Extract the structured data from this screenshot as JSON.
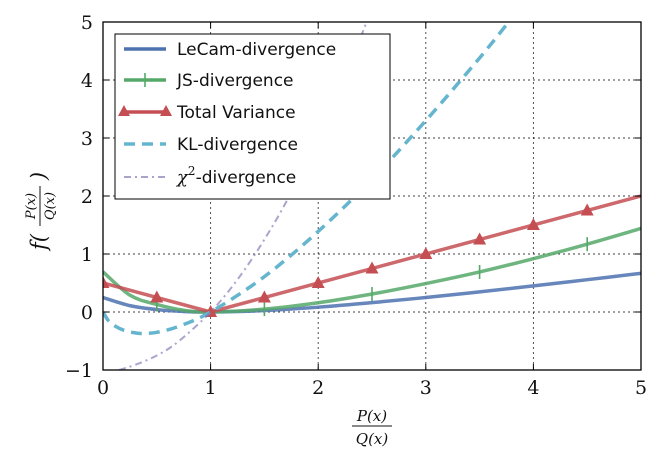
{
  "chart_data": {
    "type": "line",
    "title": "",
    "xlabel_num": "P(x)",
    "xlabel_den": "Q(x)",
    "ylabel_prefix": "f(",
    "ylabel_num": "P(x)",
    "ylabel_den": "Q(x)",
    "ylabel_suffix": ")",
    "xlim": [
      0,
      5
    ],
    "ylim": [
      -1,
      5
    ],
    "xticks": [
      0,
      1,
      2,
      3,
      4,
      5
    ],
    "yticks": [
      -1,
      0,
      1,
      2,
      3,
      4,
      5
    ],
    "xtick_labels": [
      "0",
      "1",
      "2",
      "3",
      "4",
      "5"
    ],
    "ytick_labels": [
      "−1",
      "0",
      "1",
      "2",
      "3",
      "4",
      "5"
    ],
    "grid": true,
    "legend_position": "top-left",
    "series": [
      {
        "name": "LeCam-divergence",
        "color": "#4c72b0",
        "style": "solid",
        "marker": "none",
        "x": [
          0,
          0.25,
          0.5,
          0.75,
          1,
          1.5,
          2,
          2.5,
          3,
          3.5,
          4,
          4.5,
          5
        ],
        "y": [
          0.25,
          0.11,
          0.042,
          0.009,
          0,
          0.025,
          0.083,
          0.161,
          0.25,
          0.347,
          0.45,
          0.557,
          0.667
        ]
      },
      {
        "name": "JS-divergence",
        "color": "#55a868",
        "style": "solid",
        "marker": "plus",
        "x": [
          0,
          0.25,
          0.5,
          0.75,
          1,
          1.5,
          2,
          2.5,
          3,
          3.5,
          4,
          4.5,
          5
        ],
        "y": [
          0.693,
          0.29,
          0.13,
          0.03,
          0,
          0.05,
          0.16,
          0.31,
          0.49,
          0.69,
          0.92,
          1.17,
          1.44
        ],
        "marker_x": [
          0.5,
          1.5,
          2.5,
          3.5,
          4.5
        ],
        "marker_y": [
          0.13,
          0.05,
          0.31,
          0.69,
          1.17
        ]
      },
      {
        "name": "Total Variance",
        "color": "#c44e52",
        "style": "solid",
        "marker": "triangle",
        "x": [
          0,
          1,
          5
        ],
        "y": [
          0.5,
          0,
          2
        ],
        "marker_x": [
          0,
          0.5,
          1,
          1.5,
          2,
          2.5,
          3,
          3.5,
          4,
          4.5
        ],
        "marker_y": [
          0.5,
          0.25,
          0,
          0.25,
          0.5,
          0.75,
          1,
          1.25,
          1.5,
          1.75
        ]
      },
      {
        "name": "KL-divergence",
        "color": "#64b5cd",
        "style": "dashed",
        "marker": "none",
        "x": [
          0,
          0.05,
          0.1,
          0.2,
          0.3,
          0.37,
          0.5,
          0.7,
          1,
          1.5,
          2,
          2.5,
          3,
          3.5,
          3.8
        ],
        "y": [
          0,
          -0.15,
          -0.23,
          -0.32,
          -0.36,
          -0.37,
          -0.35,
          -0.25,
          0,
          0.61,
          1.39,
          2.29,
          3.3,
          4.38,
          5.07
        ]
      },
      {
        "name": "χ²-divergence",
        "label_base": "χ",
        "label_sup": "2",
        "label_rest": "-divergence",
        "color": "#8172b2",
        "style": "dashdot",
        "marker": "none",
        "x": [
          0.15,
          0.3,
          0.5,
          0.7,
          1,
          1.25,
          1.5,
          1.75,
          2,
          2.25,
          2.45
        ],
        "y": [
          -1,
          -0.91,
          -0.75,
          -0.51,
          0,
          0.56,
          1.25,
          2.06,
          3,
          4.06,
          5
        ]
      }
    ]
  }
}
